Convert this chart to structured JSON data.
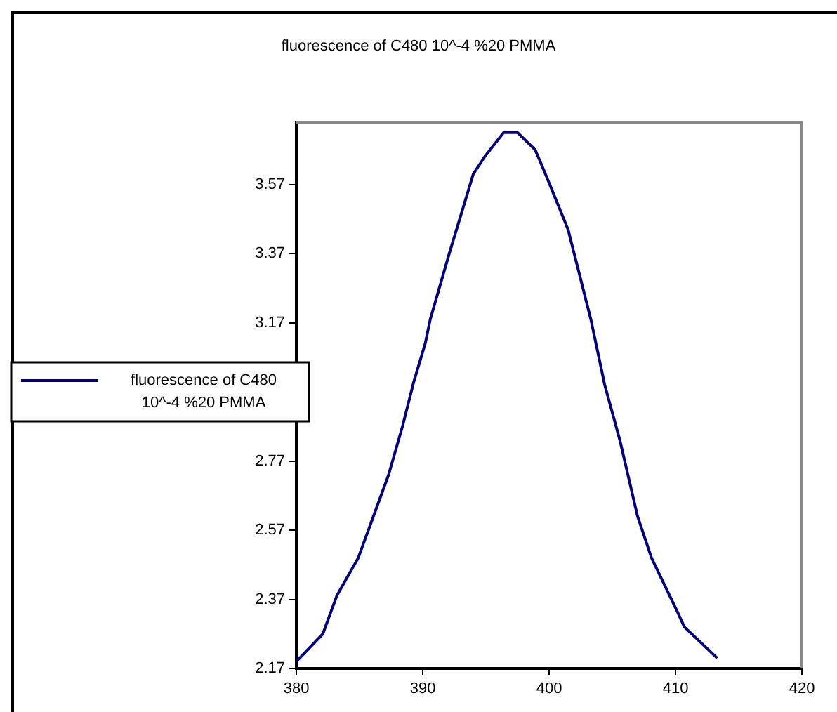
{
  "chart_data": {
    "type": "line",
    "title": "fluorescence of C480 10^-4 %20 PMMA",
    "xlim": [
      380,
      420
    ],
    "xticks": [
      380,
      390,
      400,
      410,
      420
    ],
    "ylim": [
      2.17,
      3.75
    ],
    "yticks": [
      2.17,
      2.37,
      2.57,
      2.77,
      {
        "value": 2.97,
        "label": null
      },
      3.17,
      3.37,
      3.57
    ],
    "series": [
      {
        "name": "fluorescence of C480 10^-4 %20 PMMA",
        "color": "#000080",
        "x": [
          380,
          382.1,
          383.2,
          384.9,
          386,
          387.3,
          388.4,
          389.3,
          390.2,
          390.6,
          392.1,
          394,
          394.9,
          396.4,
          397.5,
          398.9,
          399.6,
          401.5,
          403.3,
          404.4,
          405.6,
          407,
          408.1,
          410.2,
          410.7,
          413.3
        ],
        "values": [
          2.19,
          2.27,
          2.38,
          2.49,
          2.6,
          2.73,
          2.87,
          3,
          3.11,
          3.18,
          3.37,
          3.6,
          3.65,
          3.72,
          3.72,
          3.67,
          3.61,
          3.44,
          3.18,
          2.99,
          2.83,
          2.61,
          2.49,
          2.33,
          2.29,
          2.2
        ]
      }
    ],
    "grid": false,
    "legend": "left",
    "marker": "none",
    "line_style": "solid"
  }
}
